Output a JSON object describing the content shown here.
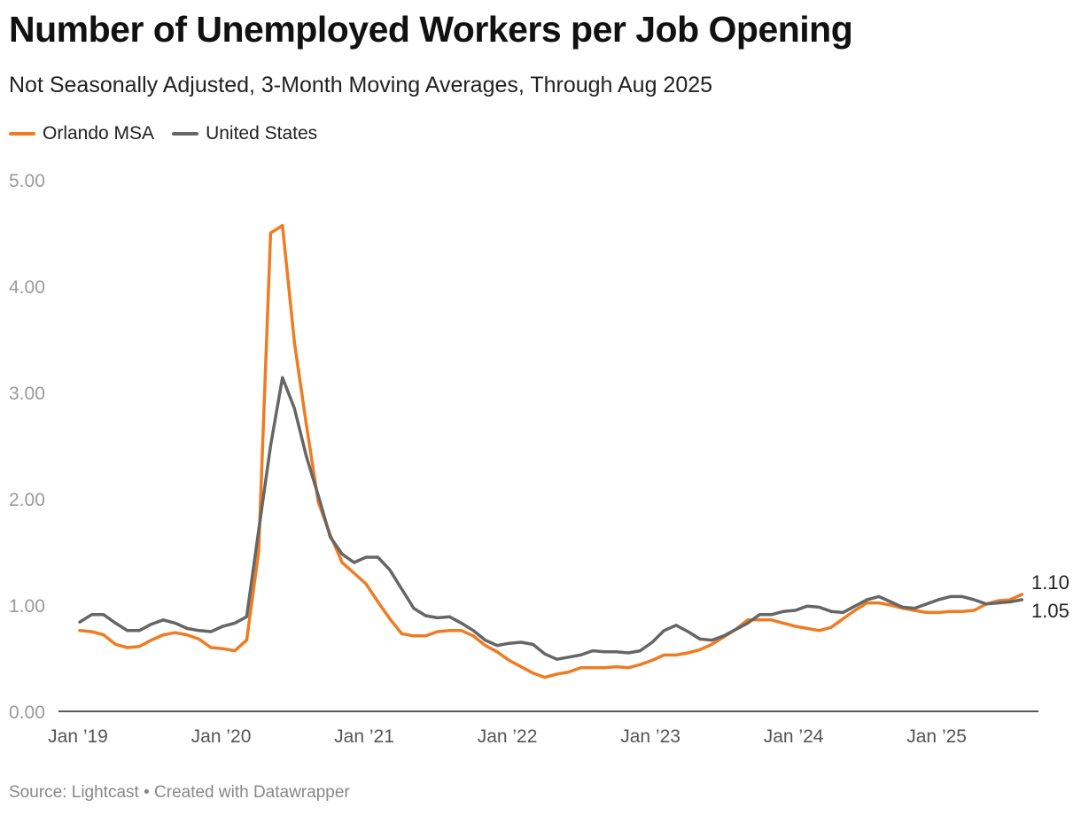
{
  "chart_data": {
    "type": "line",
    "title": "Number of Unemployed Workers per Job Opening",
    "subtitle": "Not Seasonally Adjusted, 3-Month Moving Averages, Through Aug 2025",
    "source": "Source: Lightcast • Created with Datawrapper",
    "xlabel": "",
    "ylabel": "",
    "ylim": [
      0,
      5
    ],
    "y_ticks": [
      {
        "value": 0,
        "label": "0.00"
      },
      {
        "value": 1,
        "label": "1.00"
      },
      {
        "value": 2,
        "label": "2.00"
      },
      {
        "value": 3,
        "label": "3.00"
      },
      {
        "value": 4,
        "label": "4.00"
      },
      {
        "value": 5,
        "label": "5.00"
      }
    ],
    "x_start": "Jan 2019",
    "x_ticks": [
      {
        "index": 0,
        "label": "Jan ’19"
      },
      {
        "index": 12,
        "label": "Jan ’20"
      },
      {
        "index": 24,
        "label": "Jan ’21"
      },
      {
        "index": 36,
        "label": "Jan ’22"
      },
      {
        "index": 48,
        "label": "Jan ’23"
      },
      {
        "index": 60,
        "label": "Jan ’24"
      },
      {
        "index": 72,
        "label": "Jan ’25"
      }
    ],
    "series": [
      {
        "name": "Orlando MSA",
        "color": "#ef7c22",
        "end_label": "1.10",
        "values": [
          0.76,
          0.75,
          0.72,
          0.63,
          0.6,
          0.61,
          0.67,
          0.72,
          0.74,
          0.72,
          0.68,
          0.6,
          0.59,
          0.57,
          0.67,
          1.5,
          4.5,
          4.57,
          3.47,
          2.7,
          1.97,
          1.66,
          1.4,
          1.3,
          1.2,
          1.03,
          0.87,
          0.73,
          0.71,
          0.71,
          0.75,
          0.76,
          0.76,
          0.71,
          0.62,
          0.56,
          0.48,
          0.42,
          0.36,
          0.32,
          0.35,
          0.37,
          0.41,
          0.41,
          0.41,
          0.42,
          0.41,
          0.44,
          0.48,
          0.53,
          0.53,
          0.55,
          0.58,
          0.63,
          0.7,
          0.77,
          0.86,
          0.86,
          0.86,
          0.83,
          0.8,
          0.78,
          0.76,
          0.79,
          0.87,
          0.95,
          1.02,
          1.02,
          1.0,
          0.97,
          0.95,
          0.93,
          0.93,
          0.94,
          0.94,
          0.95,
          1.01,
          1.04,
          1.05,
          1.1
        ]
      },
      {
        "name": "United States",
        "color": "#666666",
        "end_label": "1.05",
        "values": [
          0.84,
          0.91,
          0.91,
          0.83,
          0.76,
          0.76,
          0.82,
          0.86,
          0.83,
          0.78,
          0.76,
          0.75,
          0.8,
          0.83,
          0.89,
          1.7,
          2.5,
          3.14,
          2.85,
          2.4,
          2.03,
          1.64,
          1.48,
          1.4,
          1.45,
          1.45,
          1.33,
          1.15,
          0.97,
          0.9,
          0.88,
          0.89,
          0.83,
          0.76,
          0.67,
          0.62,
          0.64,
          0.65,
          0.63,
          0.54,
          0.49,
          0.51,
          0.53,
          0.57,
          0.56,
          0.56,
          0.55,
          0.57,
          0.65,
          0.76,
          0.81,
          0.75,
          0.68,
          0.67,
          0.71,
          0.77,
          0.83,
          0.91,
          0.91,
          0.94,
          0.95,
          0.99,
          0.98,
          0.94,
          0.93,
          0.99,
          1.05,
          1.08,
          1.03,
          0.98,
          0.97,
          1.01,
          1.05,
          1.08,
          1.08,
          1.05,
          1.01,
          1.02,
          1.03,
          1.05
        ]
      }
    ]
  }
}
